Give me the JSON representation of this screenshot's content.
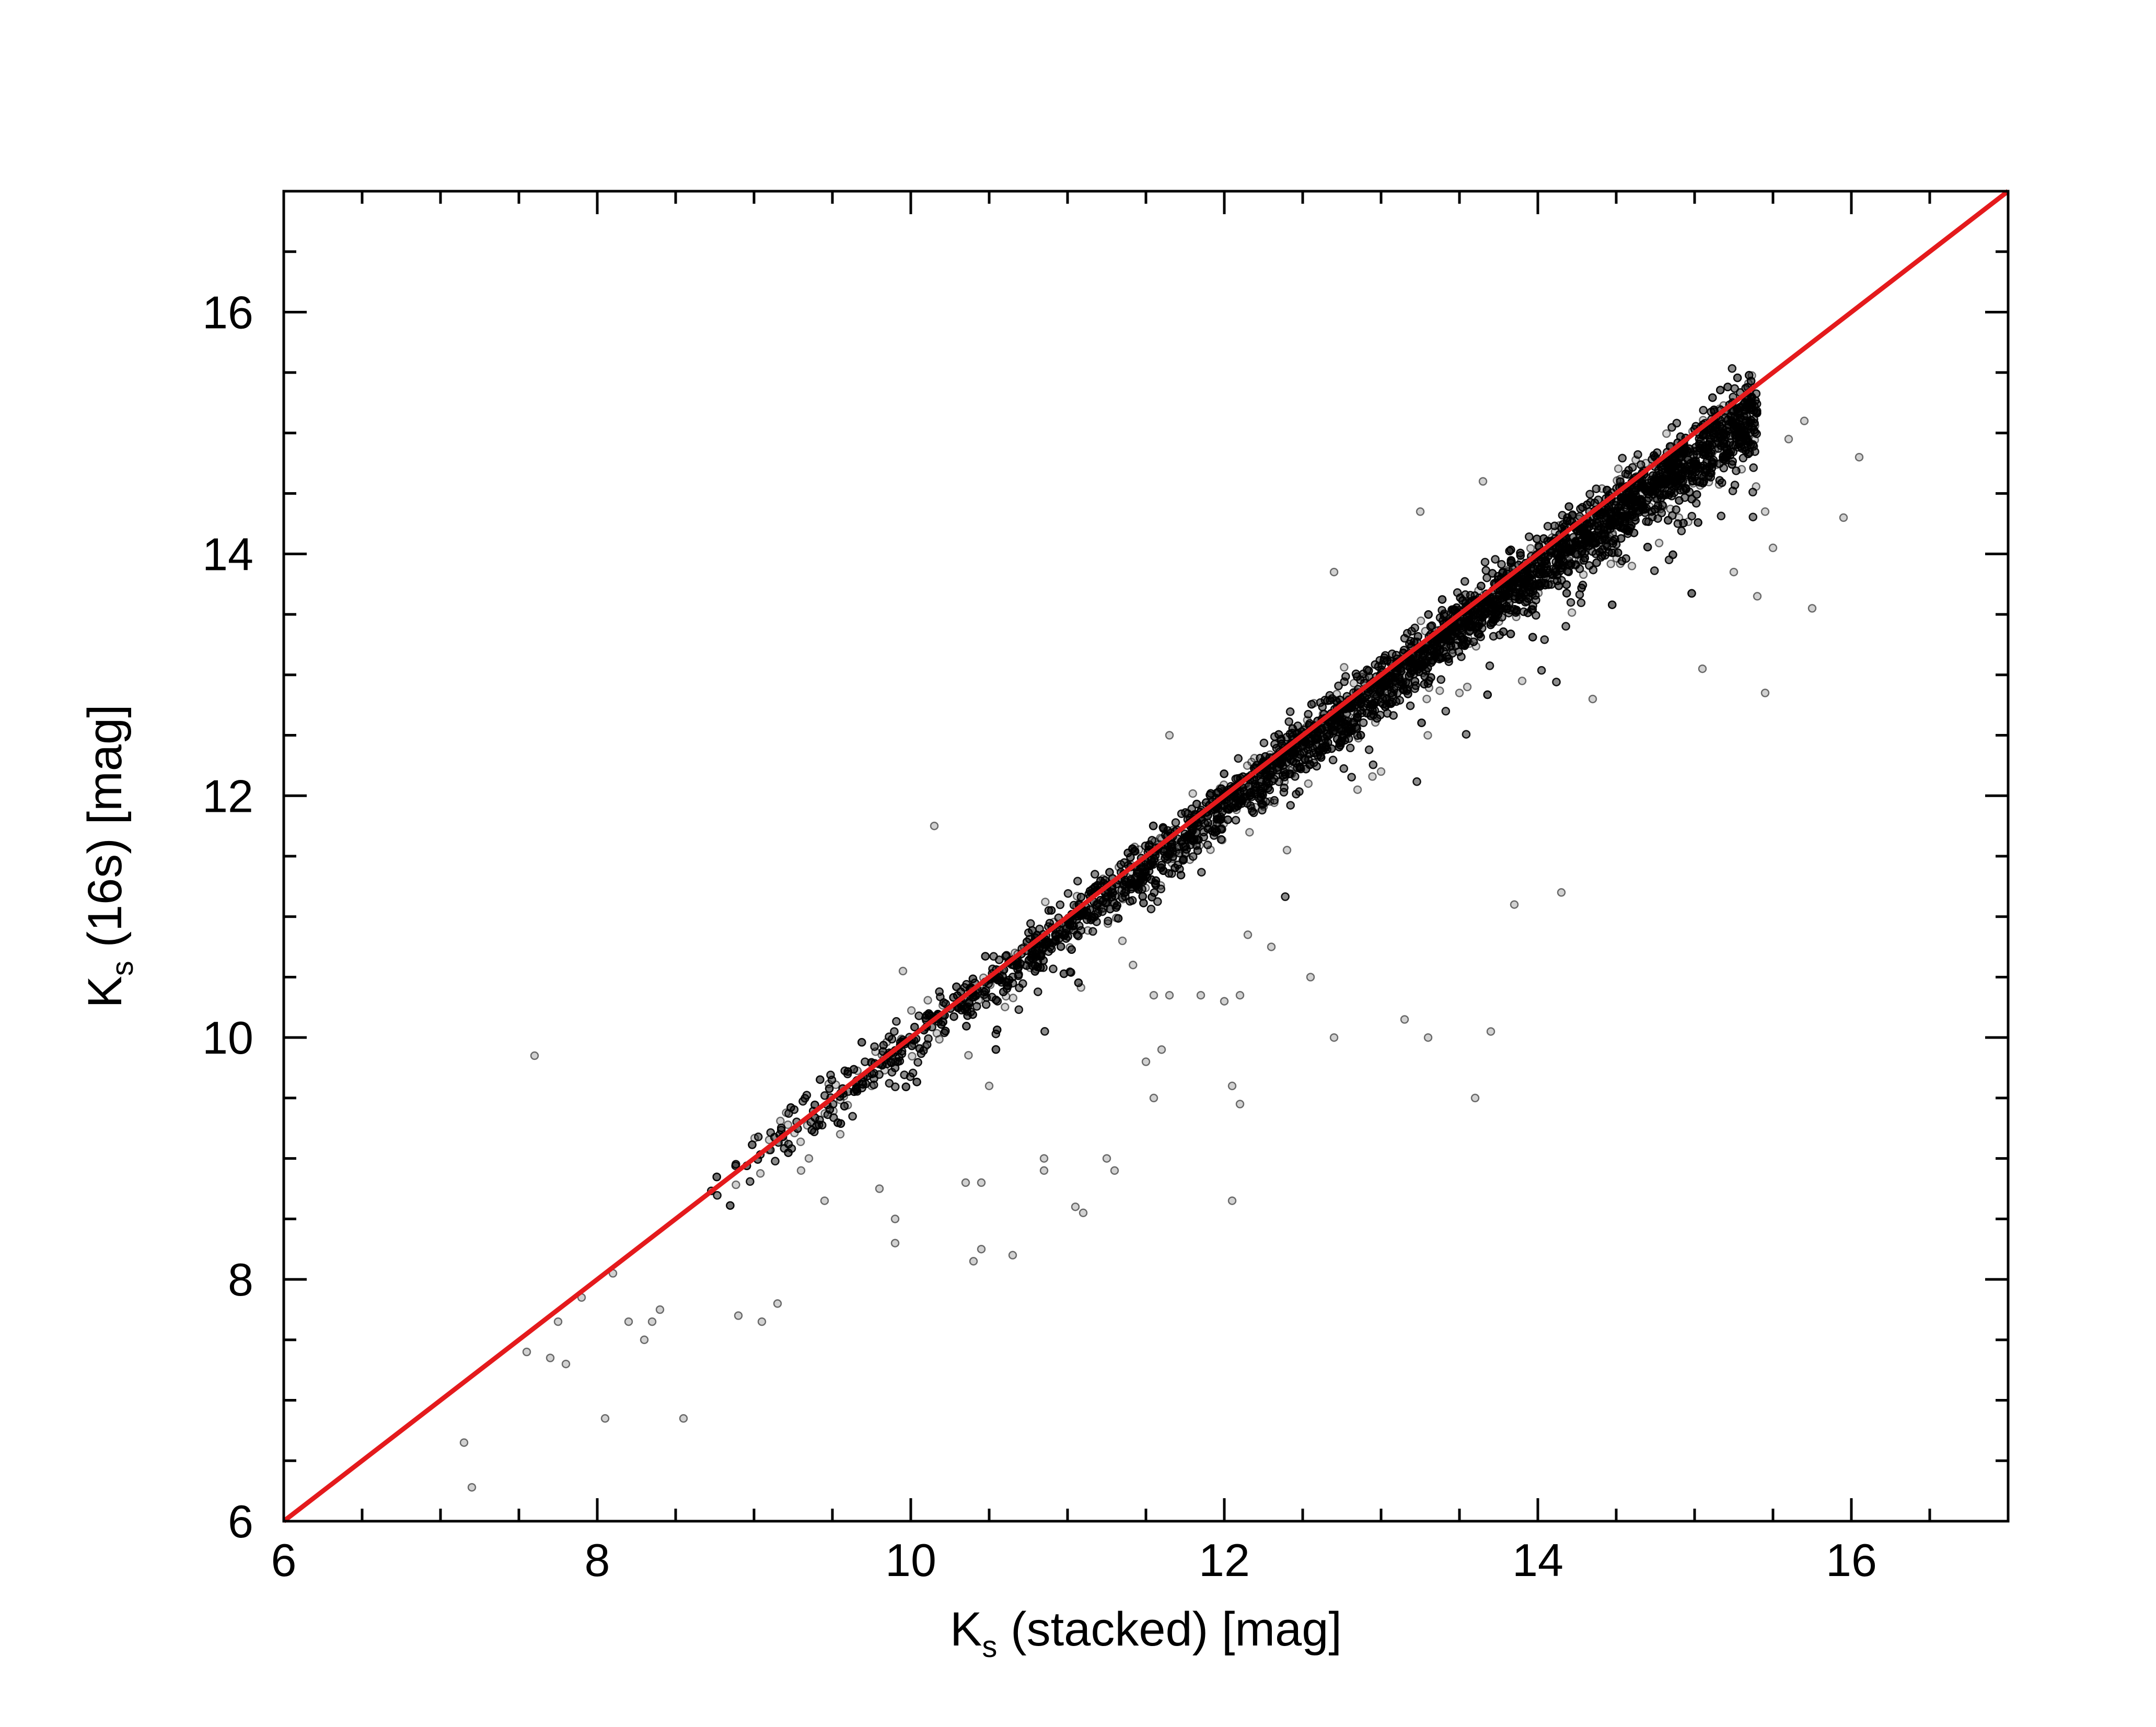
{
  "chart_data": {
    "type": "scatter",
    "title": "",
    "xlabel": {
      "main": "K",
      "sub": "s",
      "rest": " (stacked) [mag]"
    },
    "ylabel": {
      "main": "K",
      "sub": "s",
      "rest": " (16s) [mag]"
    },
    "xlim": [
      6,
      17
    ],
    "ylim": [
      6,
      17
    ],
    "x_ticks": [
      6,
      8,
      10,
      12,
      14,
      16
    ],
    "y_ticks": [
      6,
      8,
      10,
      12,
      14,
      16
    ],
    "x_tick_labels": [
      "6",
      "8",
      "10",
      "12",
      "14",
      "16"
    ],
    "y_tick_labels": [
      "6",
      "8",
      "10",
      "12",
      "14",
      "16"
    ],
    "minor_tick_step": 0.5,
    "grid": false,
    "legend": "none",
    "colors": {
      "points": "#000000",
      "identity_line": "#e41a1c"
    },
    "identity_line": {
      "x": [
        6,
        17
      ],
      "y": [
        6,
        17
      ]
    },
    "dense_sequence": {
      "description_free_note": "",
      "x_range": [
        8.7,
        15.4
      ],
      "offset_pairs": [
        [
          8.7,
          0.0
        ],
        [
          10.0,
          -0.05
        ],
        [
          12.0,
          -0.08
        ],
        [
          14.0,
          -0.12
        ],
        [
          15.0,
          -0.2
        ],
        [
          15.4,
          -0.25
        ]
      ],
      "scatter_sigma_pairs": [
        [
          8.7,
          0.12
        ],
        [
          10.0,
          0.1
        ],
        [
          12.0,
          0.11
        ],
        [
          14.0,
          0.13
        ],
        [
          15.3,
          0.16
        ]
      ],
      "n_points": 9000
    },
    "outliers": [
      [
        7.15,
        6.65
      ],
      [
        7.2,
        6.28
      ],
      [
        7.55,
        7.4
      ],
      [
        7.6,
        9.85
      ],
      [
        7.7,
        7.35
      ],
      [
        7.75,
        7.65
      ],
      [
        7.8,
        7.3
      ],
      [
        7.9,
        7.85
      ],
      [
        8.05,
        6.85
      ],
      [
        8.1,
        8.05
      ],
      [
        8.2,
        7.65
      ],
      [
        8.3,
        7.5
      ],
      [
        8.35,
        7.65
      ],
      [
        8.4,
        7.75
      ],
      [
        8.55,
        6.85
      ],
      [
        8.9,
        7.7
      ],
      [
        9.05,
        7.65
      ],
      [
        9.15,
        7.8
      ],
      [
        9.3,
        8.9
      ],
      [
        9.45,
        8.65
      ],
      [
        9.55,
        9.2
      ],
      [
        9.8,
        8.75
      ],
      [
        9.9,
        8.5
      ],
      [
        9.9,
        8.3
      ],
      [
        9.95,
        10.55
      ],
      [
        10.15,
        11.75
      ],
      [
        10.35,
        8.8
      ],
      [
        10.4,
        8.15
      ],
      [
        10.45,
        8.8
      ],
      [
        10.45,
        8.25
      ],
      [
        10.65,
        8.2
      ],
      [
        10.85,
        9.0
      ],
      [
        10.85,
        8.9
      ],
      [
        11.05,
        8.6
      ],
      [
        11.1,
        8.55
      ],
      [
        11.25,
        9.0
      ],
      [
        11.3,
        8.9
      ],
      [
        11.5,
        9.8
      ],
      [
        11.55,
        9.5
      ],
      [
        11.6,
        9.9
      ],
      [
        11.55,
        10.35
      ],
      [
        11.65,
        10.35
      ],
      [
        11.85,
        10.35
      ],
      [
        12.0,
        10.3
      ],
      [
        12.1,
        10.35
      ],
      [
        12.05,
        9.6
      ],
      [
        12.1,
        9.45
      ],
      [
        12.05,
        8.65
      ],
      [
        12.15,
        10.85
      ],
      [
        12.3,
        10.75
      ],
      [
        12.55,
        10.5
      ],
      [
        12.7,
        10.0
      ],
      [
        13.15,
        10.15
      ],
      [
        13.3,
        10.0
      ],
      [
        13.6,
        9.5
      ],
      [
        13.7,
        10.05
      ],
      [
        13.85,
        11.1
      ],
      [
        14.15,
        11.2
      ],
      [
        13.9,
        12.95
      ],
      [
        13.5,
        12.85
      ],
      [
        14.35,
        12.8
      ],
      [
        15.05,
        13.05
      ],
      [
        15.45,
        12.85
      ],
      [
        15.75,
        13.55
      ],
      [
        15.5,
        14.05
      ],
      [
        15.95,
        14.3
      ],
      [
        16.05,
        14.8
      ],
      [
        15.6,
        14.95
      ],
      [
        15.7,
        15.1
      ],
      [
        15.45,
        14.35
      ],
      [
        15.3,
        14.7
      ],
      [
        15.25,
        13.85
      ],
      [
        15.4,
        13.65
      ],
      [
        12.7,
        13.85
      ],
      [
        13.25,
        14.35
      ],
      [
        13.65,
        14.6
      ],
      [
        11.65,
        12.5
      ],
      [
        13.0,
        12.2
      ],
      [
        12.4,
        11.55
      ],
      [
        11.0,
        10.9
      ],
      [
        9.75,
        9.6
      ],
      [
        9.35,
        9.0
      ],
      [
        10.5,
        9.6
      ],
      [
        11.35,
        10.8
      ],
      [
        12.85,
        12.05
      ],
      [
        13.55,
        12.9
      ],
      [
        14.6,
        13.9
      ],
      [
        14.9,
        14.3
      ]
    ]
  }
}
